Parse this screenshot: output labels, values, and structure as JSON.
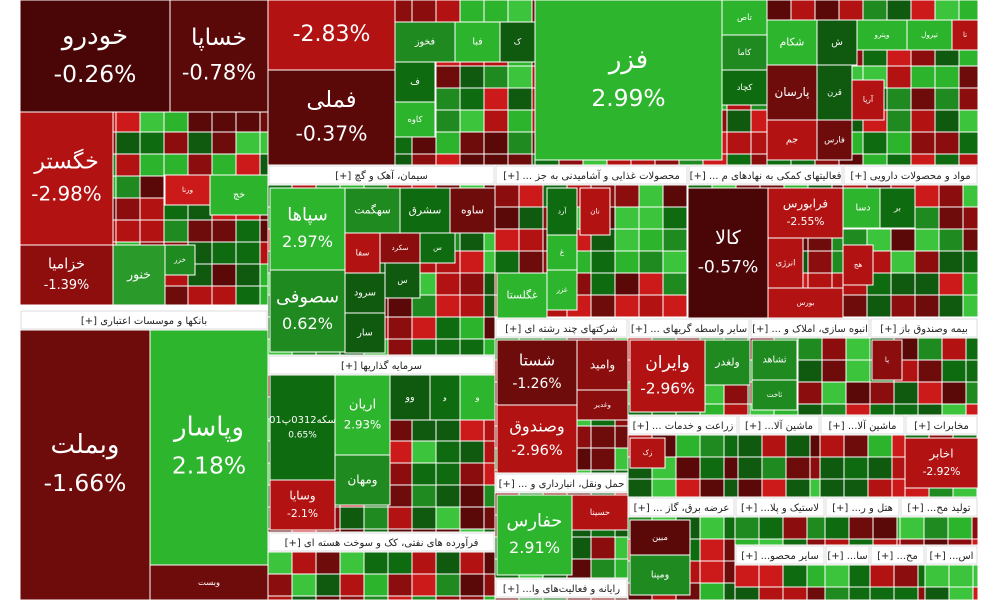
{
  "chart_data": {
    "type": "treemap",
    "sectors": [
      {
        "tiles": [
          {
            "name": "خودرو",
            "value": -0.26,
            "label": "-0.26%",
            "color": "#4a0606"
          },
          {
            "name": "خساپا",
            "value": -0.78,
            "label": "-0.78%",
            "color": "#5a0808"
          },
          {
            "name": "خگستر",
            "value": -2.98,
            "label": "-2.98%",
            "color": "#b31212"
          },
          {
            "name": "خزامیا",
            "value": -1.39,
            "label": "-1.39%",
            "color": "#8e0e0e"
          },
          {
            "name": "خنور",
            "color": "#2a9a2a"
          },
          {
            "name": "ورنا",
            "color": "#cc1a1a"
          },
          {
            "name": "خزر",
            "color": "#1f8a1f"
          },
          {
            "name": "خچ",
            "color": "#2cb52c"
          }
        ]
      },
      {
        "title": "بانکها و موسسات اعتباری [+]",
        "tiles": [
          {
            "name": "وبملت",
            "value": -1.66,
            "label": "-1.66%",
            "color": "#6e0b0b"
          },
          {
            "name": "وپاسار",
            "value": 2.18,
            "label": "2.18%",
            "color": "#2eb52e"
          },
          {
            "name": "وبست",
            "color": "#6e0b0b"
          }
        ]
      },
      {
        "tiles": [
          {
            "value": -2.83,
            "label": "-2.83%",
            "color": "#b31212"
          },
          {
            "name": "فملی",
            "value": -0.37,
            "label": "-0.37%",
            "color": "#5a0808"
          },
          {
            "name": "فخوز",
            "color": "#1f8a1f"
          },
          {
            "name": "فبا",
            "color": "#2cb52c"
          },
          {
            "name": "ک",
            "color": "#0f5a0f"
          },
          {
            "name": "ف",
            "color": "#0f6b0f"
          },
          {
            "name": "کاوه",
            "color": "#2cb52c"
          }
        ]
      },
      {
        "tiles": [
          {
            "name": "فزر",
            "value": 2.99,
            "label": "2.99%",
            "color": "#2eb52e"
          },
          {
            "name": "تاص",
            "color": "#2cb52c"
          },
          {
            "name": "کاما",
            "color": "#1f8a1f"
          },
          {
            "name": "کچاد",
            "color": "#0f6b0f"
          }
        ]
      },
      {
        "tiles": [
          {
            "name": "شکام",
            "color": "#2eb52e"
          },
          {
            "name": "ش",
            "color": "#0f5a0f"
          },
          {
            "name": "وپترو",
            "color": "#2cb52c"
          },
          {
            "name": "تپرول",
            "color": "#2cb52c"
          },
          {
            "name": "تا",
            "color": "#b31212"
          },
          {
            "name": "پارسان",
            "color": "#6e0b0b"
          },
          {
            "name": "قرن",
            "color": "#0f5a0f"
          },
          {
            "name": "آریا",
            "color": "#b31212"
          },
          {
            "name": "جم",
            "color": "#b31212"
          },
          {
            "name": "فارس",
            "color": "#6e0b0b"
          }
        ]
      },
      {
        "title": "سیمان، آهک و گچ [+]",
        "tiles": [
          {
            "name": "سپاها",
            "value": 2.97,
            "label": "2.97%",
            "color": "#2eb52e"
          },
          {
            "name": "سصوفی",
            "value": 0.62,
            "label": "0.62%",
            "color": "#1f8a1f"
          },
          {
            "name": "سهگمت",
            "color": "#1f8a1f"
          },
          {
            "name": "سشرق",
            "color": "#0f6b0f"
          },
          {
            "name": "ساوه",
            "color": "#6e0b0b"
          },
          {
            "name": "سفا",
            "color": "#b31212"
          },
          {
            "name": "سکرد",
            "color": "#8b0d0d"
          },
          {
            "name": "س",
            "color": "#0f6b0f"
          },
          {
            "name": "سرود",
            "color": "#0f5a0f"
          },
          {
            "name": "س",
            "color": "#0f5a0f"
          },
          {
            "name": "سار",
            "color": "#0f5a0f"
          }
        ]
      },
      {
        "title": "سرمایه گذاریها [+]",
        "tiles": [
          {
            "name": "سکه0312پ01",
            "value": 0.65,
            "label": "0.65%",
            "color": "#0f6b0f"
          },
          {
            "name": "وسایا",
            "value": -2.1,
            "label": "-2.1%",
            "color": "#b31212"
          },
          {
            "name": "اریان",
            "value": 2.93,
            "label": "2.93%",
            "color": "#2eb52e"
          },
          {
            "name": "ومهان",
            "color": "#1f8a1f"
          },
          {
            "name": "وو",
            "color": "#0f5a0f"
          },
          {
            "name": "و",
            "color": "#0f6b0f"
          },
          {
            "name": "و",
            "color": "#2eb52e"
          }
        ]
      },
      {
        "title": "فرآورده های نفتی، کک و سوخت هسته ای [+]",
        "tiles": []
      },
      {
        "title": "محصولات غذایی و آشامیدنی به جز ... [+]",
        "tiles": [
          {
            "name": "غگلستا",
            "color": "#2eb52e"
          },
          {
            "name": "غزر",
            "color": "#2eb52e"
          },
          {
            "name": "غ",
            "color": "#2cb52c"
          },
          {
            "name": "آرد",
            "color": "#0f6b0f"
          },
          {
            "name": "نان",
            "color": "#b31212"
          }
        ]
      },
      {
        "title": "فعالیتهای کمکی به نهادهای م ... [+]",
        "tiles": [
          {
            "name": "کالا",
            "value": -0.57,
            "label": "-0.57%",
            "color": "#4a0606"
          },
          {
            "name": "فرابورس",
            "value": -2.55,
            "label": "-2.55%",
            "color": "#b31212"
          },
          {
            "name": "انرژی",
            "color": "#b31212"
          },
          {
            "name": "بورس",
            "color": "#b31212"
          }
        ]
      },
      {
        "title": "مواد و محصولات دارویی [+]",
        "tiles": [
          {
            "name": "دسا",
            "color": "#2eb52e"
          },
          {
            "name": "بر",
            "color": "#0f6b0f"
          },
          {
            "name": "هج",
            "color": "#b31212"
          }
        ]
      },
      {
        "title": "شرکتهای چند رشته ای [+]",
        "tiles": [
          {
            "name": "شستا",
            "value": -1.26,
            "label": "-1.26%",
            "color": "#6e0b0b"
          },
          {
            "name": "وصندوق",
            "value": -2.96,
            "label": "-2.96%",
            "color": "#b31212"
          },
          {
            "name": "وامید",
            "color": "#8b0d0d"
          },
          {
            "name": "وغدیر",
            "color": "#8b0d0d"
          }
        ]
      },
      {
        "title": "حمل ونقل، انبارداری و ... [+]",
        "tiles": [
          {
            "name": "حفارس",
            "value": 2.91,
            "label": "2.91%",
            "color": "#2eb52e"
          },
          {
            "name": "حسینا",
            "color": "#b31212"
          }
        ]
      },
      {
        "title": "رایانه و فعالیت‌های وا... [+]",
        "tiles": []
      },
      {
        "title": "سایر واسطه گریهای ... [+]",
        "tiles": [
          {
            "name": "وایران",
            "value": -2.96,
            "label": "-2.96%",
            "color": "#b31212"
          },
          {
            "name": "ولغدر",
            "color": "#1f8a1f"
          }
        ]
      },
      {
        "title": "انبوه سازی، املاک و ... [+]",
        "tiles": [
          {
            "name": "ثشاهد",
            "color": "#1f8a1f"
          },
          {
            "name": "ثاخت",
            "color": "#1f8a1f"
          }
        ]
      },
      {
        "title": "بیمه وصندوق باز [+]",
        "tiles": [
          {
            "name": "پا",
            "color": "#8b0d0d"
          }
        ]
      },
      {
        "title": "زراعت و خدمات ... [+]",
        "tiles": [
          {
            "name": "زک",
            "color": "#b31212"
          }
        ]
      },
      {
        "title": "ماشین آلا... [+]",
        "tiles": []
      },
      {
        "title": "ماشین آلا... [+]",
        "tiles": []
      },
      {
        "title": "مخابرات [+]",
        "tiles": [
          {
            "name": "اخابر",
            "value": -2.92,
            "label": "-2.92%",
            "color": "#b31212"
          }
        ]
      },
      {
        "title": "عرضه برق، گاز ... [+]",
        "tiles": [
          {
            "name": "مبین",
            "color": "#5a0808"
          },
          {
            "name": "ومپنا",
            "color": "#1f8a1f"
          }
        ]
      },
      {
        "title": "لاستیک و پلا... [+]",
        "tiles": []
      },
      {
        "title": "هتل و ر... [+]",
        "tiles": []
      },
      {
        "title": "تولید مح... [+]",
        "tiles": []
      },
      {
        "title": "سایر محصو... [+]",
        "tiles": []
      },
      {
        "title": "سا... [+]",
        "tiles": []
      },
      {
        "title": "مح... [+]",
        "tiles": []
      },
      {
        "title": "اس... [+]",
        "tiles": []
      }
    ]
  }
}
